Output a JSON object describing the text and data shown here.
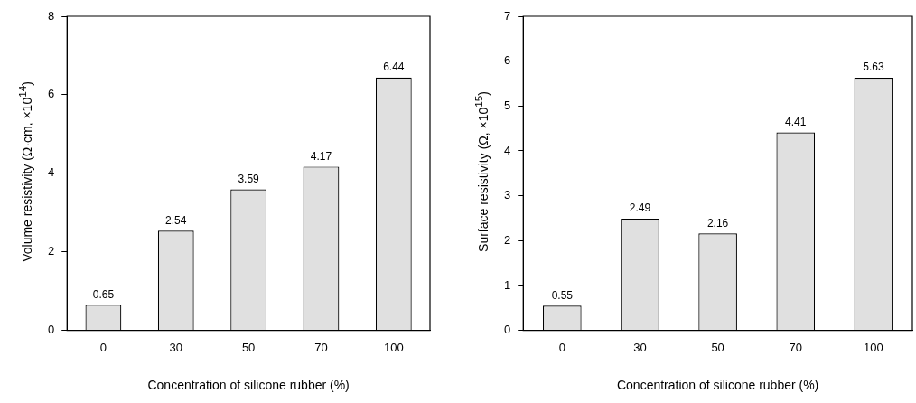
{
  "chart_data": [
    {
      "type": "bar",
      "xlabel": "Concentration of silicone rubber (%)",
      "ylabel": "Volume resistivity (Ω·cm, ×10$^{14}$)",
      "categories": [
        "0",
        "30",
        "50",
        "70",
        "100"
      ],
      "values": [
        0.65,
        2.54,
        3.59,
        4.17,
        6.44
      ],
      "color": "#e0e0e0",
      "ylim": [
        0,
        8
      ],
      "yticks": [
        0,
        2,
        4,
        6,
        8
      ],
      "grid": false,
      "data_labels": true,
      "legend": false
    },
    {
      "type": "bar",
      "xlabel": "Concentration of silicone rubber (%)",
      "ylabel": "Surface resistivity (Ω, ×10$^{15}$)",
      "categories": [
        "0",
        "30",
        "50",
        "70",
        "100"
      ],
      "values": [
        0.55,
        2.49,
        2.16,
        4.41,
        5.63
      ],
      "color": "#e0e0e0",
      "ylim": [
        0,
        7
      ],
      "yticks": [
        0,
        1,
        2,
        3,
        4,
        5,
        6,
        7
      ],
      "grid": false,
      "data_labels": true,
      "legend": false
    }
  ]
}
